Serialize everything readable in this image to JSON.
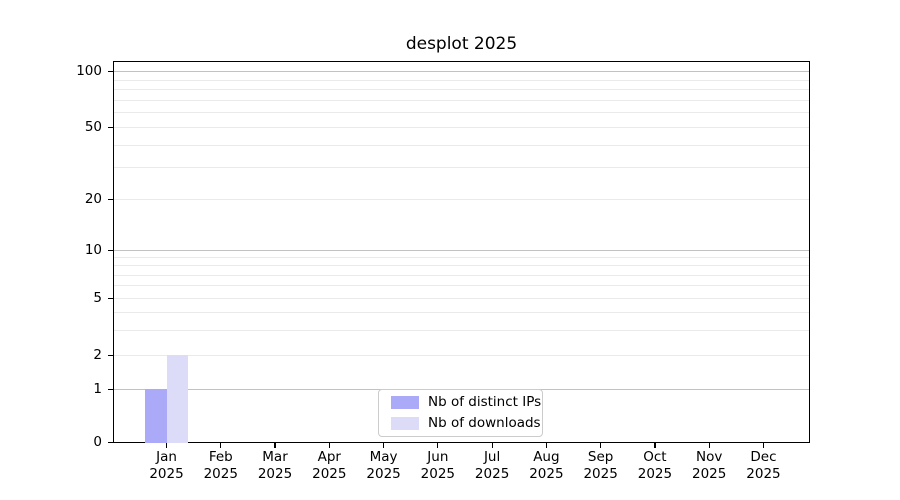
{
  "chart_data": {
    "type": "bar",
    "title": "desplot 2025",
    "xlabel": "",
    "ylabel": "",
    "x_year": "2025",
    "categories": [
      "Jan",
      "Feb",
      "Mar",
      "Apr",
      "May",
      "Jun",
      "Jul",
      "Aug",
      "Sep",
      "Oct",
      "Nov",
      "Dec"
    ],
    "series": [
      {
        "name": "Nb of distinct IPs",
        "color": "#aaaaf8",
        "values": [
          1,
          0,
          0,
          0,
          0,
          0,
          0,
          0,
          0,
          0,
          0,
          0
        ]
      },
      {
        "name": "Nb of downloads",
        "color": "#dcdcf8",
        "values": [
          2,
          0,
          0,
          0,
          0,
          0,
          0,
          0,
          0,
          0,
          0,
          0
        ]
      }
    ],
    "yticks": [
      0,
      1,
      2,
      5,
      10,
      20,
      50,
      100
    ],
    "ylim": [
      0,
      112
    ],
    "yscale": "log-like with zero baseline (ticks 0,1,2,5,10,20,50,100)",
    "grid": "horizontal, major and minor",
    "legend_position": "lower center",
    "colors": {
      "grid_major": "#c2c2c2",
      "grid_minor": "#eaeaea",
      "spine": "#000000",
      "text": "#000000",
      "background": "#ffffff"
    }
  }
}
